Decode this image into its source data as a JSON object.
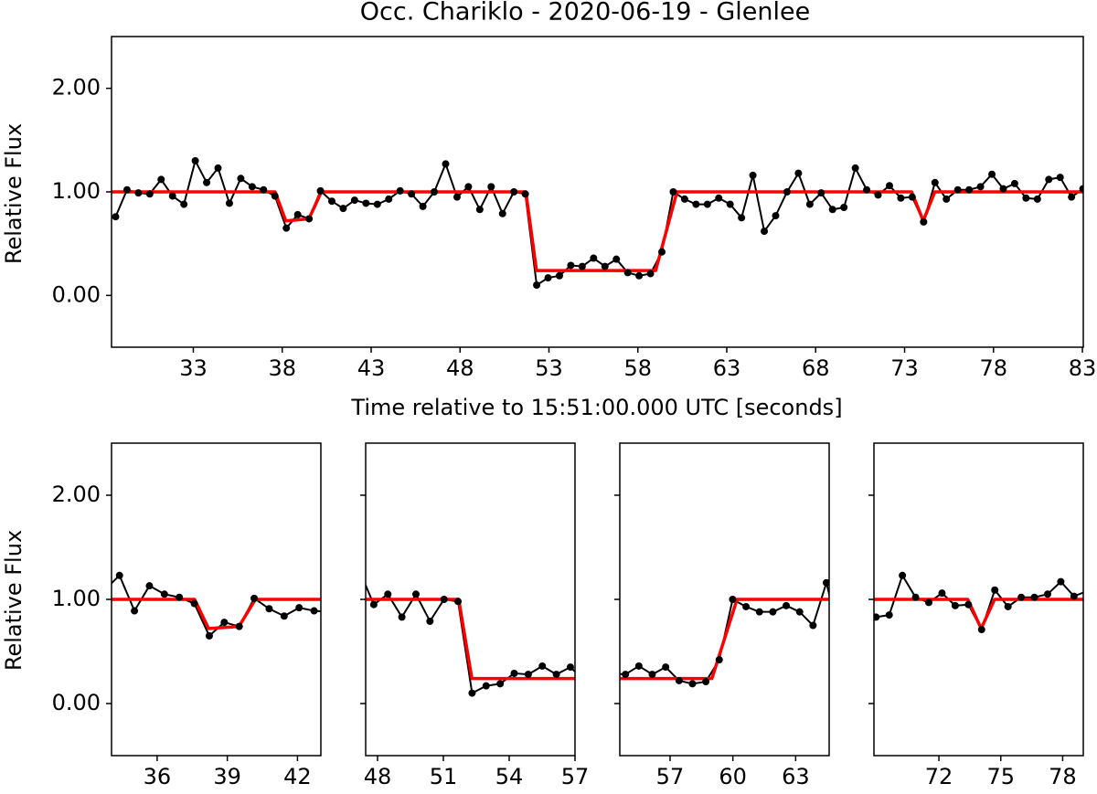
{
  "chart_data": {
    "type": "line",
    "title": "Occ. Chariklo - 2020-06-19 - Glenlee",
    "xlabel": "Time relative to 15:51:00.000 UTC [seconds]",
    "ylabel": "Relative Flux",
    "xlim": [
      28.4,
      83.05
    ],
    "xticks": [
      33,
      38,
      43,
      48,
      53,
      58,
      63,
      68,
      73,
      78,
      83
    ],
    "ylim": [
      -0.5,
      2.5
    ],
    "yticks": [
      {
        "value": 0,
        "label": "0.00"
      },
      {
        "value": 1,
        "label": "1.00"
      },
      {
        "value": 2,
        "label": "2.00"
      }
    ],
    "series": [
      {
        "color": "#000000",
        "marker": true,
        "x": [
          28.63,
          29.27,
          29.91,
          30.55,
          31.19,
          31.83,
          32.47,
          33.11,
          33.75,
          34.39,
          35.03,
          35.67,
          36.31,
          36.95,
          37.59,
          38.23,
          38.87,
          39.51,
          40.15,
          40.79,
          41.43,
          42.07,
          42.71,
          43.35,
          43.99,
          44.63,
          45.27,
          45.91,
          46.55,
          47.19,
          47.83,
          48.47,
          49.11,
          49.75,
          50.39,
          51.03,
          51.67,
          52.31,
          52.95,
          53.59,
          54.23,
          54.87,
          55.51,
          56.15,
          56.79,
          57.43,
          58.07,
          58.71,
          59.35,
          59.99,
          60.63,
          61.27,
          61.91,
          62.55,
          63.19,
          63.83,
          64.47,
          65.11,
          65.75,
          66.39,
          67.03,
          67.67,
          68.31,
          68.95,
          69.59,
          70.23,
          70.87,
          71.51,
          72.15,
          72.79,
          73.43,
          74.07,
          74.71,
          75.35,
          75.99,
          76.63,
          77.27,
          77.91,
          78.55,
          79.19,
          79.83,
          80.47,
          81.11,
          81.75,
          82.39,
          83.03
        ],
        "values": [
          0.76,
          1.02,
          0.99,
          0.98,
          1.12,
          0.96,
          0.88,
          1.3,
          1.09,
          1.23,
          0.89,
          1.13,
          1.05,
          1.02,
          0.96,
          0.65,
          0.78,
          0.74,
          1.01,
          0.91,
          0.84,
          0.92,
          0.89,
          0.88,
          0.93,
          1.01,
          0.98,
          0.86,
          1.0,
          1.27,
          0.95,
          1.05,
          0.83,
          1.05,
          0.79,
          1.0,
          0.98,
          0.1,
          0.17,
          0.19,
          0.29,
          0.28,
          0.36,
          0.28,
          0.35,
          0.22,
          0.19,
          0.21,
          0.42,
          1.0,
          0.93,
          0.88,
          0.88,
          0.94,
          0.88,
          0.75,
          1.16,
          0.62,
          0.77,
          1.0,
          1.18,
          0.88,
          0.99,
          0.83,
          0.85,
          1.23,
          1.02,
          0.97,
          1.06,
          0.94,
          0.95,
          0.71,
          1.09,
          0.93,
          1.02,
          1.02,
          1.05,
          1.17,
          1.03,
          1.08,
          0.94,
          0.93,
          1.12,
          1.14,
          0.95,
          1.03
        ]
      },
      {
        "color": "#ff0000",
        "marker": false,
        "x": [
          28.4,
          37.6,
          38.2,
          39.5,
          40.2,
          51.7,
          52.3,
          59.0,
          60.2,
          73.4,
          74.05,
          74.7,
          83.05
        ],
        "values": [
          1,
          1,
          0.72,
          0.74,
          1,
          1,
          0.24,
          0.24,
          1,
          1,
          0.72,
          1,
          1
        ]
      }
    ],
    "insets": [
      {
        "xlim": [
          34.05,
          43.0
        ],
        "xticks": [
          36,
          39,
          42
        ]
      },
      {
        "xlim": [
          47.46,
          57.0
        ],
        "xticks": [
          48,
          51,
          54,
          57
        ]
      },
      {
        "xlim": [
          54.6,
          64.6
        ],
        "xticks": [
          57,
          60,
          63
        ]
      },
      {
        "xlim": [
          68.85,
          79.0
        ],
        "xticks": [
          72,
          75,
          78
        ]
      }
    ]
  }
}
